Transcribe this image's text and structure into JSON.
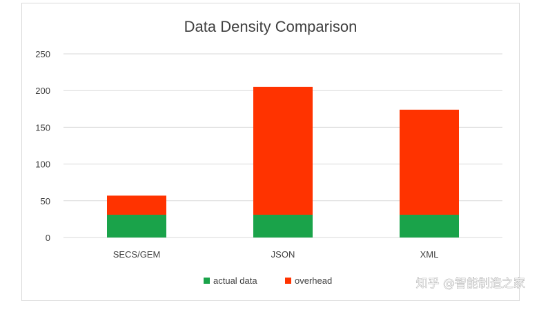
{
  "chart_data": {
    "type": "bar",
    "stacked": true,
    "title": "Data Density Comparison",
    "xlabel": "",
    "ylabel": "",
    "categories": [
      "SECS/GEM",
      "JSON",
      "XML"
    ],
    "series": [
      {
        "name": "actual data",
        "color": "#1aa34a",
        "values": [
          31,
          31,
          31
        ]
      },
      {
        "name": "overhead",
        "color": "#ff3300",
        "values": [
          26,
          174,
          143
        ]
      }
    ],
    "ylim": [
      0,
      250
    ],
    "yticks": [
      "0",
      "50",
      "100",
      "150",
      "200",
      "250"
    ],
    "grid": true,
    "legend_position": "bottom"
  },
  "watermark": {
    "text": "知乎 @智能制造之家"
  }
}
